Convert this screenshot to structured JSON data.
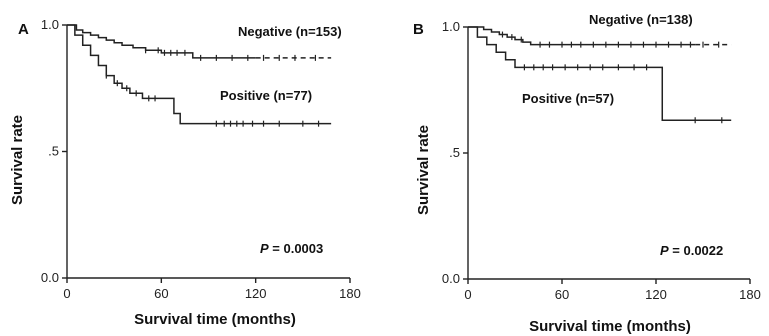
{
  "chart_data": [
    {
      "type": "line",
      "step": true,
      "panel_label": "A",
      "xlabel": "Survival time (months)",
      "ylabel": "Survival rate",
      "xlim": [
        0,
        180
      ],
      "ylim": [
        0,
        1.0
      ],
      "x_ticks": [
        "0",
        "60",
        "120",
        "180"
      ],
      "y_ticks": [
        "0.0",
        ".5",
        "1.0"
      ],
      "p_value": {
        "prefix": "P",
        "text": " = 0.0003"
      },
      "series": [
        {
          "name": "Negative (n=153)",
          "style": "solid",
          "dashed_after": 120,
          "x": [
            0,
            6,
            10,
            15,
            20,
            25,
            30,
            35,
            42,
            50,
            60,
            70,
            80,
            90,
            100,
            120,
            140,
            168
          ],
          "y": [
            1.0,
            0.98,
            0.97,
            0.96,
            0.95,
            0.94,
            0.93,
            0.92,
            0.91,
            0.9,
            0.89,
            0.89,
            0.87,
            0.87,
            0.87,
            0.87,
            0.87,
            0.87
          ],
          "censor_x": [
            50,
            58,
            62,
            66,
            70,
            75,
            85,
            95,
            105,
            115,
            125,
            135,
            145,
            158
          ]
        },
        {
          "name": "Positive (n=77)",
          "style": "solid",
          "x": [
            0,
            5,
            10,
            15,
            20,
            25,
            30,
            35,
            40,
            48,
            60,
            68,
            72,
            90,
            120,
            168
          ],
          "y": [
            1.0,
            0.96,
            0.92,
            0.88,
            0.84,
            0.8,
            0.77,
            0.75,
            0.73,
            0.71,
            0.71,
            0.65,
            0.61,
            0.61,
            0.61,
            0.61
          ],
          "censor_x": [
            25,
            32,
            38,
            44,
            52,
            56,
            95,
            100,
            104,
            108,
            112,
            118,
            125,
            135,
            150,
            160
          ]
        }
      ]
    },
    {
      "type": "line",
      "step": true,
      "panel_label": "B",
      "xlabel": "Survival time (months)",
      "ylabel": "Survival rate",
      "xlim": [
        0,
        180
      ],
      "ylim": [
        0,
        1.0
      ],
      "x_ticks": [
        "0",
        "60",
        "120",
        "180"
      ],
      "y_ticks": [
        "0.0",
        ".5",
        "1.0"
      ],
      "p_value": {
        "prefix": "P",
        "text": " = 0.0022"
      },
      "series": [
        {
          "name": "Negative (n=138)",
          "style": "solid",
          "dashed_after": 145,
          "x": [
            0,
            10,
            15,
            20,
            25,
            30,
            35,
            40,
            45,
            55,
            70,
            90,
            168
          ],
          "y": [
            1.0,
            0.99,
            0.98,
            0.97,
            0.96,
            0.95,
            0.94,
            0.93,
            0.93,
            0.93,
            0.93,
            0.93,
            0.93
          ],
          "censor_x": [
            22,
            28,
            34,
            46,
            52,
            60,
            66,
            72,
            80,
            88,
            96,
            104,
            112,
            120,
            128,
            136,
            142,
            150,
            160
          ]
        },
        {
          "name": "Positive (n=57)",
          "style": "solid",
          "x": [
            0,
            6,
            12,
            18,
            24,
            30,
            120,
            124,
            168
          ],
          "y": [
            1.0,
            0.96,
            0.93,
            0.9,
            0.87,
            0.84,
            0.84,
            0.63,
            0.63
          ],
          "censor_x": [
            36,
            42,
            48,
            54,
            62,
            70,
            78,
            86,
            96,
            106,
            114,
            145,
            162
          ]
        }
      ]
    }
  ]
}
